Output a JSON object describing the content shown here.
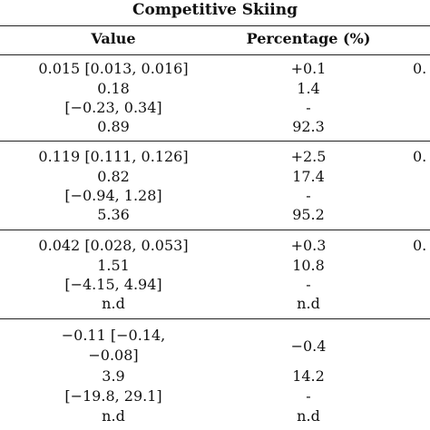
{
  "table": {
    "title": "Competitive Skiing",
    "headers": {
      "value": "Value",
      "percentage": "Percentage (%)"
    },
    "blocks": [
      {
        "rows": [
          {
            "value": "0.015 [0.013, 0.016]",
            "pct": "+0.1",
            "extra": "0."
          },
          {
            "value": "0.18",
            "pct": "1.4",
            "extra": ""
          },
          {
            "value": "[−0.23, 0.34]",
            "pct": "-",
            "extra": ""
          },
          {
            "value": "0.89",
            "pct": "92.3",
            "extra": ""
          }
        ]
      },
      {
        "rows": [
          {
            "value": "0.119 [0.111, 0.126]",
            "pct": "+2.5",
            "extra": "0."
          },
          {
            "value": "0.82",
            "pct": "17.4",
            "extra": ""
          },
          {
            "value": "[−0.94, 1.28]",
            "pct": "-",
            "extra": ""
          },
          {
            "value": "5.36",
            "pct": "95.2",
            "extra": ""
          }
        ]
      },
      {
        "rows": [
          {
            "value": "0.042 [0.028, 0.053]",
            "pct": "+0.3",
            "extra": "0."
          },
          {
            "value": "1.51",
            "pct": "10.8",
            "extra": ""
          },
          {
            "value": "[−4.15, 4.94]",
            "pct": "-",
            "extra": ""
          },
          {
            "value": "n.d",
            "pct": "n.d",
            "extra": ""
          }
        ]
      },
      {
        "rows": [
          {
            "value": "−0.11 [−0.14,",
            "pct": "",
            "extra": ""
          },
          {
            "value": "−0.08]",
            "pct": "−0.4",
            "extra": ""
          },
          {
            "value": "3.9",
            "pct": "14.2",
            "extra": ""
          },
          {
            "value": "[−19.8, 29.1]",
            "pct": "-",
            "extra": ""
          },
          {
            "value": "n.d",
            "pct": "n.d",
            "extra": ""
          }
        ]
      }
    ]
  }
}
